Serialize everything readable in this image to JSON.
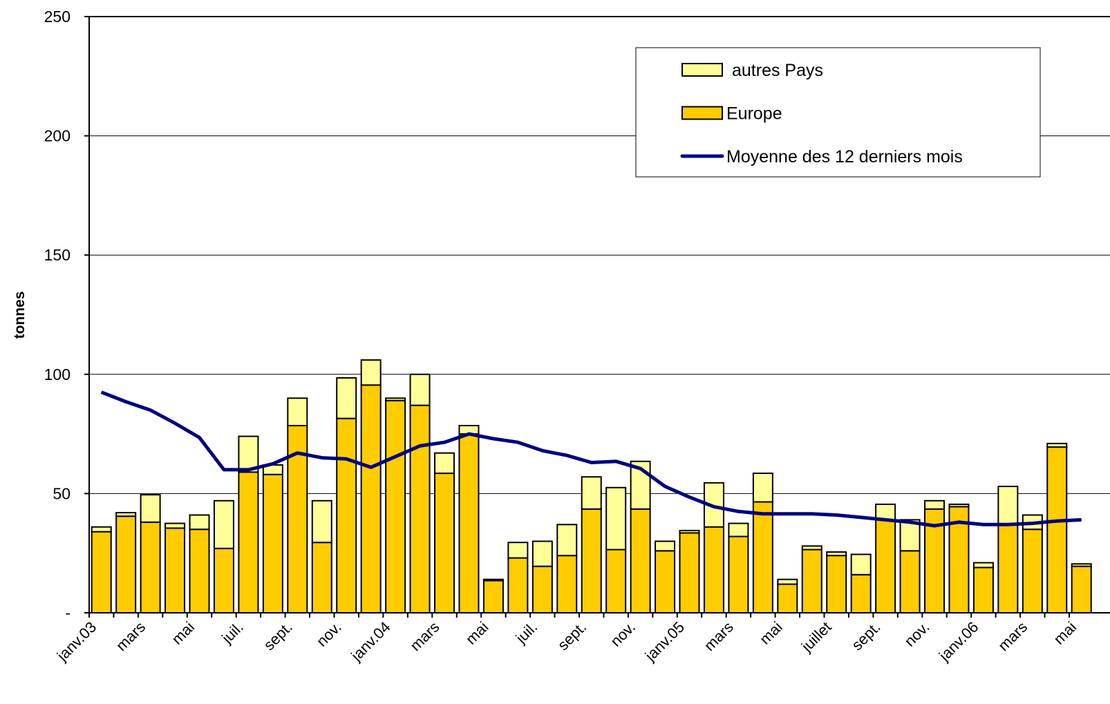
{
  "chart_data": {
    "type": "bar",
    "y_label": "tonnes",
    "categories": [
      "janv.03",
      null,
      "mars",
      null,
      "mai",
      null,
      "juil.",
      null,
      "sept.",
      null,
      "nov.",
      null,
      "janv.04",
      null,
      "mars",
      null,
      "mai",
      null,
      "juil.",
      null,
      "sept.",
      null,
      "nov.",
      null,
      "janv.05",
      null,
      "mars",
      null,
      "mai",
      null,
      "juillet",
      null,
      "sept.",
      null,
      "nov.",
      null,
      "janv.06",
      null,
      "mars",
      null,
      "mai"
    ],
    "series": [
      {
        "name": "autres Pays",
        "kind": "bar",
        "color": "#ffff99",
        "values": [
          2,
          1.5,
          11.5,
          2,
          6,
          20,
          15,
          4,
          11.5,
          17.5,
          17,
          10.5,
          1,
          13,
          8.5,
          3.5,
          0.5,
          6.5,
          10.5,
          13,
          13.5,
          26,
          20,
          4,
          1,
          18.5,
          5.5,
          12,
          2,
          1.5,
          1.5,
          8.5,
          6.5,
          13,
          3.5,
          1,
          2,
          16,
          6,
          1.5,
          1
        ]
      },
      {
        "name": "Europe",
        "kind": "bar",
        "color": "#ffcc00",
        "values": [
          34,
          40.5,
          38,
          35.5,
          35,
          27,
          59,
          58,
          78.5,
          29.5,
          81.5,
          95.5,
          89,
          87,
          58.5,
          75,
          13.5,
          23,
          19.5,
          24,
          43.5,
          26.5,
          43.5,
          26,
          33.5,
          36,
          32,
          46.5,
          12,
          26.5,
          24,
          16,
          39,
          26,
          43.5,
          44.5,
          19,
          37,
          35,
          69.5,
          19.5
        ]
      },
      {
        "name": "Moyenne des 12 derniers mois",
        "kind": "line",
        "color": "#000080",
        "values": [
          92.5,
          88.5,
          85,
          79.5,
          73.5,
          60,
          60,
          62.5,
          67,
          65,
          64.5,
          61,
          65.5,
          70,
          71.5,
          75,
          73,
          71.5,
          68,
          66,
          63,
          63.5,
          60.5,
          53,
          48.5,
          44.5,
          42.5,
          41.5,
          41.5,
          41.5,
          41,
          40,
          39,
          38,
          36.5,
          38,
          37,
          37,
          37.5,
          38.5,
          39
        ]
      }
    ],
    "ylim": [
      0,
      250
    ],
    "yticks": [
      {
        "value": 0,
        "label": "-"
      },
      50,
      100,
      150,
      200,
      250
    ],
    "grid": true,
    "legend": "top-right"
  }
}
